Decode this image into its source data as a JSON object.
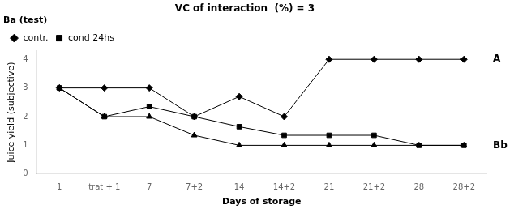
{
  "chart_data": {
    "type": "line",
    "title": "VC of interaction  (%) = 3",
    "subtitle": "Ba (test)",
    "x_label": "Days of storage",
    "y_label": "Juice yield (subjective)",
    "categories": [
      "1",
      "trat + 1",
      "7",
      "7+2",
      "14",
      "14+2",
      "21",
      "21+2",
      "28",
      "28+2"
    ],
    "series": [
      {
        "name": "contr.",
        "color": "#000000",
        "marker": "diamond",
        "values": [
          3,
          3,
          3,
          2,
          2.7,
          2,
          4,
          4,
          4,
          4
        ]
      },
      {
        "name": "cond 24hs",
        "color": "#000000",
        "marker": "square",
        "values": [
          3,
          2,
          2.35,
          2,
          1.65,
          1.35,
          1.35,
          1.35,
          1,
          1
        ]
      },
      {
        "color": "#000000",
        "marker": "triangle",
        "values": [
          3,
          2,
          2,
          1.35,
          1,
          1,
          1,
          1,
          1,
          1
        ]
      }
    ],
    "annotations": [
      {
        "text": "A",
        "y": 4
      },
      {
        "text": "Bb",
        "y": 1
      }
    ],
    "ylim": [
      0,
      4.3
    ],
    "yticks": [
      0,
      1,
      2,
      3,
      4
    ],
    "grid": false,
    "legend": "upper left"
  }
}
